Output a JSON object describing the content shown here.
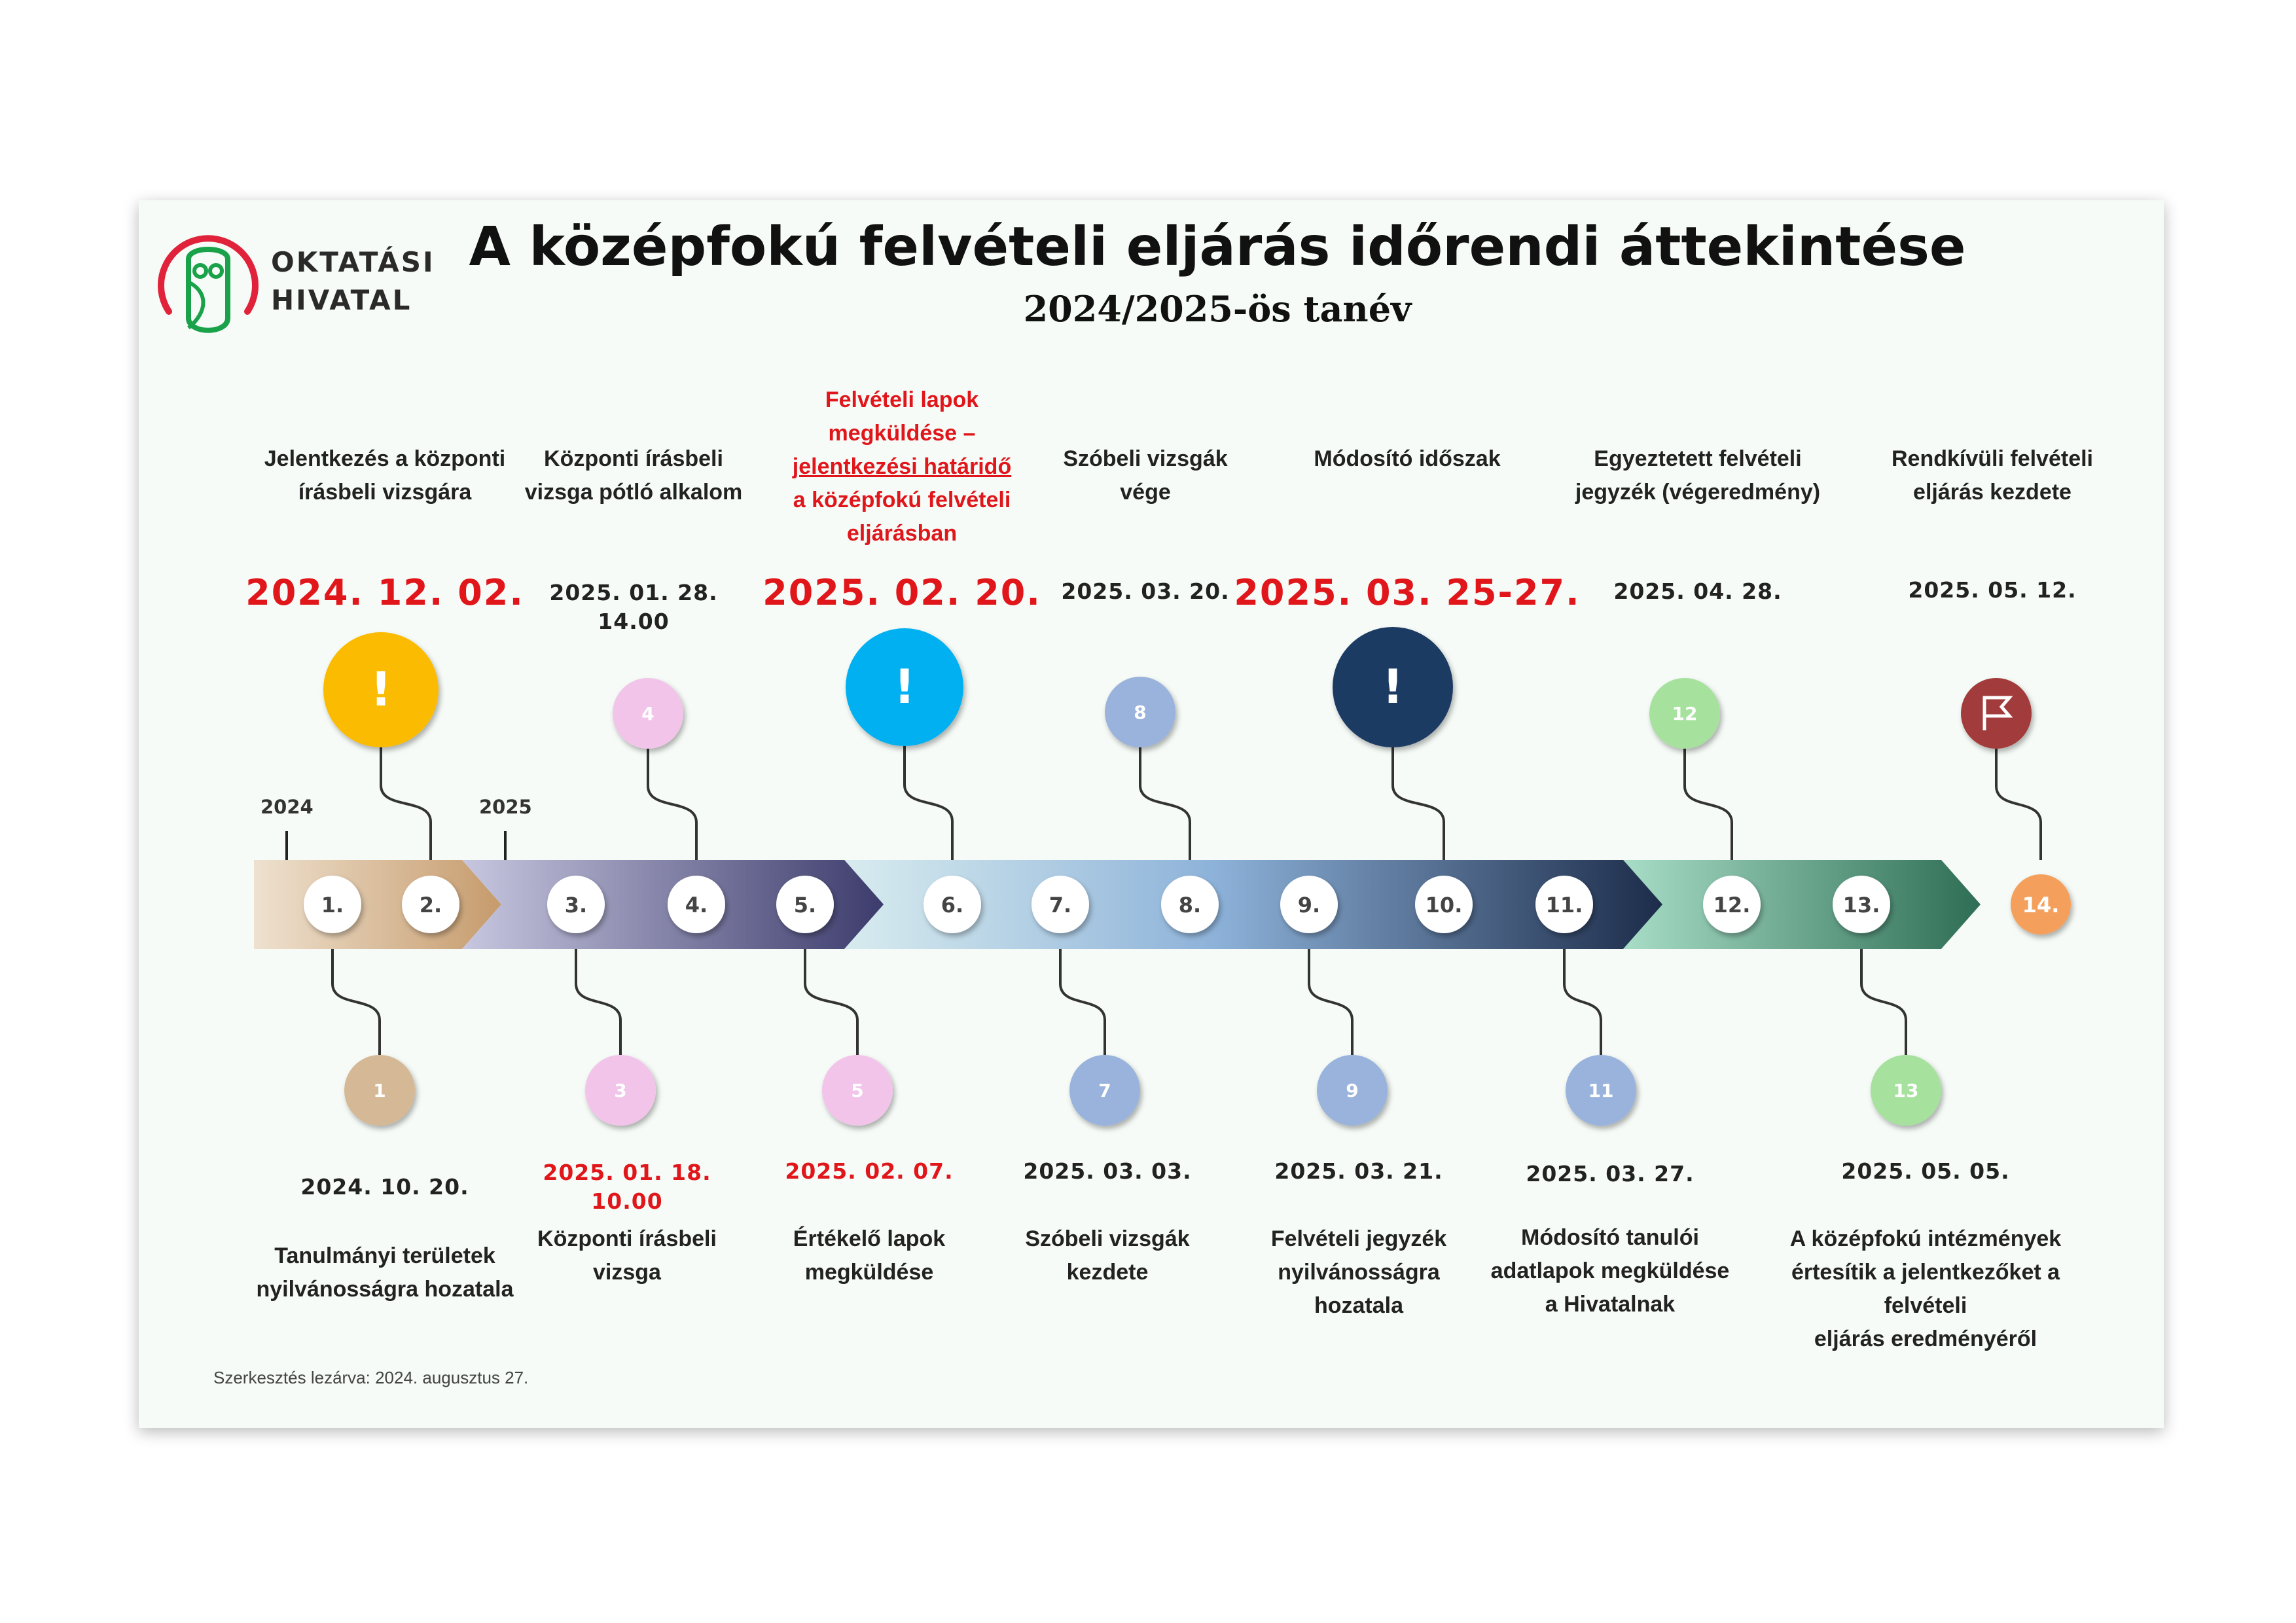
{
  "logo": {
    "line1": "OKTATÁSI",
    "line2": "HIVATAL"
  },
  "header": {
    "title": "A középfokú felvételi eljárás időrendi áttekintése",
    "subtitle": "2024/2025-ös tanév"
  },
  "years": {
    "y1": "2024",
    "y2": "2025"
  },
  "steps": [
    "1.",
    "2.",
    "3.",
    "4.",
    "5.",
    "6.",
    "7.",
    "8.",
    "9.",
    "10.",
    "11.",
    "12.",
    "13.",
    "14."
  ],
  "top_events": [
    {
      "label_lines": [
        "Jelentkezés a központi",
        "írásbeli vizsgára"
      ],
      "date_lines": [
        "2024. 12. 02."
      ],
      "marker": "!"
    },
    {
      "label_lines": [
        "Központi írásbeli",
        "vizsga pótló alkalom"
      ],
      "date_lines": [
        "2025. 01. 28.",
        "14.00"
      ],
      "marker": "4"
    },
    {
      "label_lines": [
        "Felvételi lapok",
        "megküldése –",
        "jelentkezési határidő",
        "a középfokú felvételi",
        "eljárásban"
      ],
      "date_lines": [
        "2025. 02. 20."
      ],
      "marker": "!"
    },
    {
      "label_lines": [
        "Szóbeli vizsgák",
        "vége"
      ],
      "date_lines": [
        "2025. 03. 20."
      ],
      "marker": "8"
    },
    {
      "label_lines": [
        "Módosító időszak"
      ],
      "date_lines": [
        "2025. 03. 25-27."
      ],
      "marker": "!"
    },
    {
      "label_lines": [
        "Egyeztetett felvételi",
        "jegyzék (végeredmény)"
      ],
      "date_lines": [
        "2025. 04. 28."
      ],
      "marker": "12"
    },
    {
      "label_lines": [
        "Rendkívüli felvételi",
        "eljárás kezdete"
      ],
      "date_lines": [
        "2025. 05. 12."
      ],
      "marker": "flag-icon"
    }
  ],
  "bottom_events": [
    {
      "marker": "1",
      "date_lines": [
        "2024. 10. 20."
      ],
      "label_lines": [
        "Tanulmányi területek",
        "nyilvánosságra hozatala"
      ]
    },
    {
      "marker": "3",
      "date_lines": [
        "2025. 01. 18.",
        "10.00"
      ],
      "label_lines": [
        "Központi írásbeli",
        "vizsga"
      ]
    },
    {
      "marker": "5",
      "date_lines": [
        "2025. 02. 07."
      ],
      "label_lines": [
        "Értékelő lapok",
        "megküldése"
      ]
    },
    {
      "marker": "7",
      "date_lines": [
        "2025. 03. 03."
      ],
      "label_lines": [
        "Szóbeli vizsgák",
        "kezdete"
      ]
    },
    {
      "marker": "9",
      "date_lines": [
        "2025. 03. 21."
      ],
      "label_lines": [
        "Felvételi jegyzék",
        "nyilvánosságra",
        "hozatala"
      ]
    },
    {
      "marker": "11",
      "date_lines": [
        "2025. 03. 27."
      ],
      "label_lines": [
        "Módosító tanulói",
        "adatlapok megküldése",
        "a Hivatalnak"
      ]
    },
    {
      "marker": "13",
      "date_lines": [
        "2025. 05. 05."
      ],
      "label_lines": [
        "A középfokú intézmények",
        "értesítik a jelentkezőket a",
        "felvételi",
        "eljárás eredményéről"
      ]
    }
  ],
  "footer": "Szerkesztés lezárva: 2024. augusztus 27.",
  "colors": {
    "tan": "#d5b895",
    "pink": "#f2c4ea",
    "light_blue": "#99b3dc",
    "green": "#a6e19e",
    "yellow_alert": "#fbbb00",
    "cyan_alert": "#00b0f0",
    "navy_alert": "#1f3a64",
    "flag": "#a23a3a",
    "orange_end": "#f4a05b",
    "red_text": "#e0161b"
  }
}
